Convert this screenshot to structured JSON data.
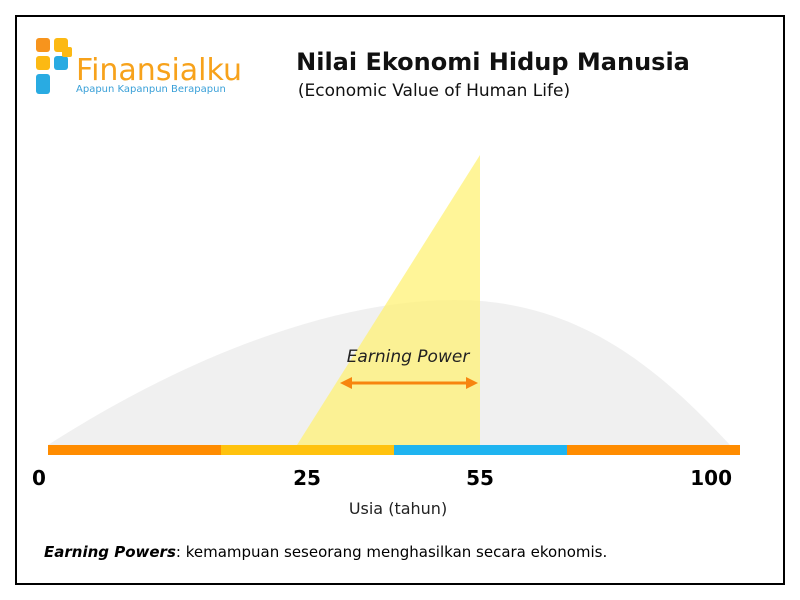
{
  "header": {
    "brand": "Finansialku",
    "tagline": "Apapun Kapanpun Berapapun",
    "title": "Nilai Ekonomi Hidup Manusia",
    "subtitle": "(Economic Value of Human Life)"
  },
  "diagram": {
    "annotation": "Earning Power",
    "axis_labels": [
      0,
      25,
      55,
      100
    ],
    "axis_title": "Usia (tahun)"
  },
  "footnote": {
    "term": "Earning Powers",
    "definition": ": kemampuan seseorang menghasilkan secara ekonomis."
  }
}
